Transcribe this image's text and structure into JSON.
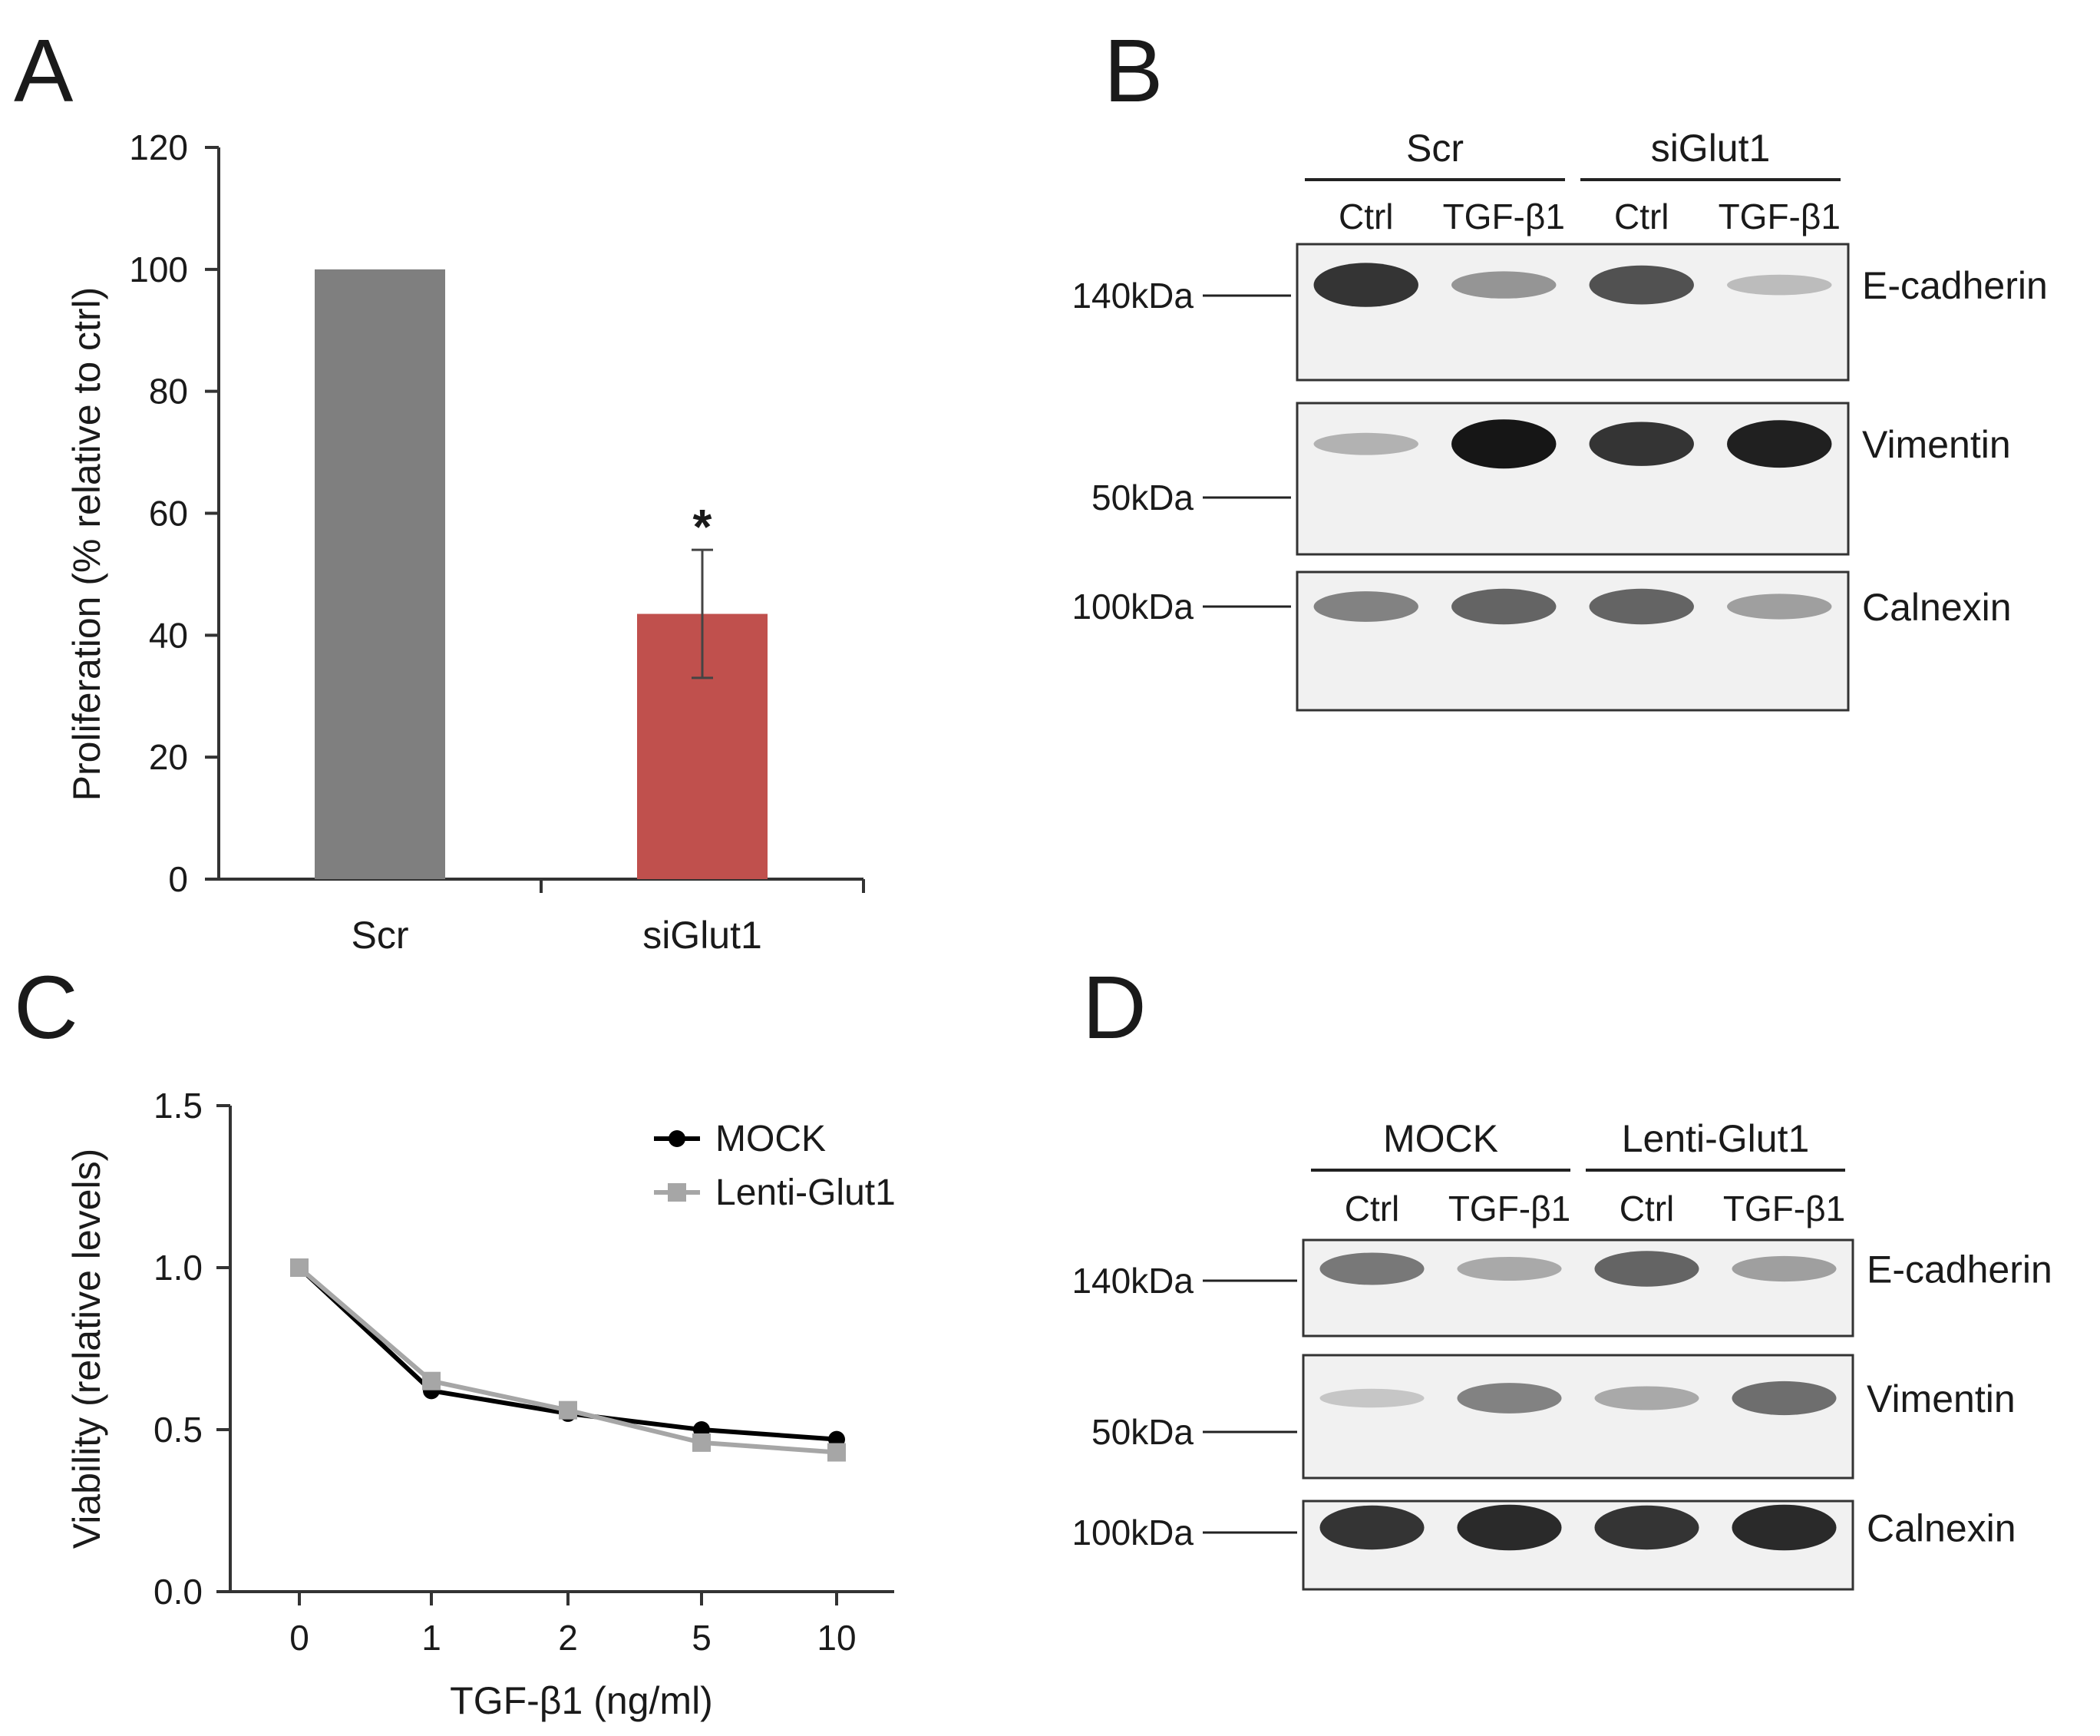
{
  "panels": {
    "a": "A",
    "b": "B",
    "c": "C",
    "d": "D"
  },
  "chart_data": [
    {
      "panel": "A",
      "type": "bar",
      "categories": [
        "Scr",
        "siGlut1"
      ],
      "values": [
        100,
        43.5
      ],
      "errors": [
        0,
        10.5
      ],
      "colors": [
        "#7f7f7f",
        "#c0504d"
      ],
      "annotations": [
        "",
        "*"
      ],
      "ylabel": "Proliferation (% relative to ctrl)",
      "xlabel": "",
      "ylim": [
        0,
        120
      ],
      "yticks": [
        0,
        20,
        40,
        60,
        80,
        100,
        120
      ],
      "grid": false
    },
    {
      "panel": "C",
      "type": "line",
      "x": [
        "0",
        "1",
        "2",
        "5",
        "10"
      ],
      "series": [
        {
          "name": "MOCK",
          "values": [
            1.0,
            0.62,
            0.55,
            0.5,
            0.47
          ],
          "color": "#000000",
          "marker": "circle"
        },
        {
          "name": "Lenti-Glut1",
          "values": [
            1.0,
            0.65,
            0.56,
            0.46,
            0.43
          ],
          "color": "#a6a6a6",
          "marker": "square"
        }
      ],
      "ylabel": "Viability (relative levels)",
      "xlabel": "TGF-β1 (ng/ml)",
      "ylim": [
        0,
        1.5
      ],
      "yticks": [
        "0.0",
        "0.5",
        "1.0",
        "1.5"
      ],
      "legend": "top-right",
      "grid": false
    }
  ],
  "blots": [
    {
      "panel": "B",
      "groups": [
        "Scr",
        "siGlut1"
      ],
      "lanes": [
        "Ctrl",
        "TGF-β1",
        "Ctrl",
        "TGF-β1"
      ],
      "rows": [
        {
          "protein": "E-cadherin",
          "marker": "140kDa",
          "intensity": [
            0.85,
            0.35,
            0.7,
            0.15
          ]
        },
        {
          "protein": "Vimentin",
          "marker": "50kDa",
          "intensity": [
            0.2,
            1.0,
            0.85,
            0.95
          ]
        },
        {
          "protein": "Calnexin",
          "marker": "100kDa",
          "intensity": [
            0.45,
            0.6,
            0.6,
            0.3
          ]
        }
      ]
    },
    {
      "panel": "D",
      "groups": [
        "MOCK",
        "Lenti-Glut1"
      ],
      "lanes": [
        "Ctrl",
        "TGF-β1",
        "Ctrl",
        "TGF-β1"
      ],
      "rows": [
        {
          "protein": "E-cadherin",
          "marker": "140kDa",
          "intensity": [
            0.5,
            0.25,
            0.6,
            0.3
          ]
        },
        {
          "protein": "Vimentin",
          "marker": "50kDa",
          "intensity": [
            0.1,
            0.45,
            0.25,
            0.55
          ]
        },
        {
          "protein": "Calnexin",
          "marker": "100kDa",
          "intensity": [
            0.85,
            0.9,
            0.85,
            0.9
          ]
        }
      ]
    }
  ]
}
